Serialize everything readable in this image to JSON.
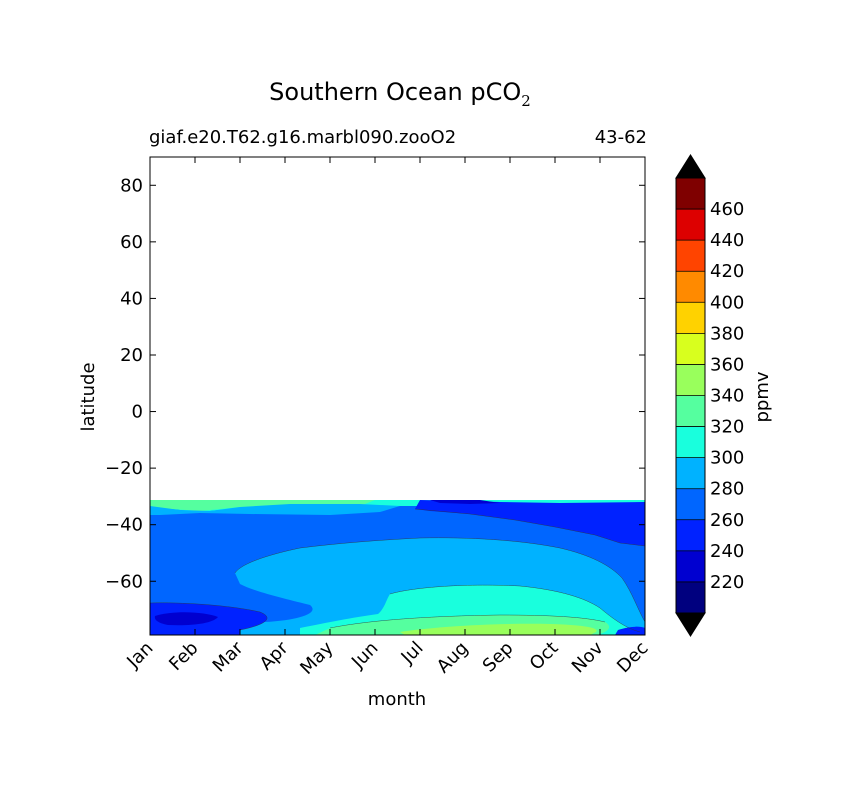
{
  "chart_data": {
    "type": "contourf",
    "title": "Southern Ocean pCO",
    "title_subscript": "2",
    "subtitle_left": "giaf.e20.T62.g16.marbl090.zooO2",
    "subtitle_right": "43-62",
    "xlabel": "month",
    "ylabel": "latitude",
    "x_ticks": [
      "Jan",
      "Feb",
      "Mar",
      "Apr",
      "May",
      "Jun",
      "Jul",
      "Aug",
      "Sep",
      "Oct",
      "Nov",
      "Dec"
    ],
    "ylim": [
      -79,
      90
    ],
    "y_ticks": [
      80,
      60,
      40,
      20,
      0,
      -20,
      -40,
      -60
    ],
    "y_tick_labels": [
      "80",
      "60",
      "40",
      "20",
      "0",
      "−20",
      "−40",
      "−60"
    ],
    "data_lat_range": [
      -79,
      -31.5
    ],
    "colorbar": {
      "label": "ppmv",
      "levels": [
        200,
        220,
        240,
        260,
        280,
        300,
        320,
        340,
        360,
        380,
        400,
        420,
        440,
        460,
        480
      ],
      "tick_values": [
        220,
        240,
        260,
        280,
        300,
        320,
        340,
        360,
        380,
        400,
        420,
        440,
        460
      ],
      "tick_labels": [
        "220",
        "240",
        "260",
        "280",
        "300",
        "320",
        "340",
        "360",
        "380",
        "400",
        "420",
        "440",
        "460"
      ],
      "colors": [
        "#00007f",
        "#0000d0",
        "#0022ff",
        "#0066ff",
        "#00b2ff",
        "#19ffdd",
        "#55ff9f",
        "#99ff5c",
        "#d8ff1e",
        "#ffd200",
        "#ff8a00",
        "#ff4400",
        "#dd0000",
        "#7f0000"
      ],
      "extend": "both",
      "under_color": "#000000",
      "over_color": "#000000"
    },
    "contour_regions": [
      {
        "level": 260,
        "lat_range": [
          -79,
          -31.5
        ],
        "months": "Jan-Dec",
        "note": "background band"
      },
      {
        "level": 320,
        "lat_range": [
          -35,
          -31.5
        ],
        "months": "Jan-Apr",
        "note": "northern edge"
      },
      {
        "level": 280,
        "lat_range": [
          -35,
          -31.5
        ],
        "months": "Apr-Aug",
        "note": "northern edge"
      },
      {
        "level": 240,
        "lat_range": [
          -47,
          -34
        ],
        "months": "Aug-Dec"
      },
      {
        "level": 280,
        "lat_range": [
          -71,
          -44
        ],
        "months": "Mar-Dec",
        "note": "central lobe"
      },
      {
        "level": 300,
        "lat_range": [
          -78,
          -62
        ],
        "months": "Jun-Nov"
      },
      {
        "level": 320,
        "lat_range": [
          -79,
          -73
        ],
        "months": "Jun-Nov"
      },
      {
        "level": 340,
        "lat_range": [
          -79,
          -76
        ],
        "months": "Aug-Oct",
        "note": "maximum"
      },
      {
        "level": 240,
        "lat_range": [
          -76,
          -67
        ],
        "months": "Jan-Mar",
        "note": "minimum"
      },
      {
        "level": 220,
        "lat_range": [
          -74,
          -71
        ],
        "months": "Jan-Feb",
        "note": "minimum core"
      }
    ]
  }
}
